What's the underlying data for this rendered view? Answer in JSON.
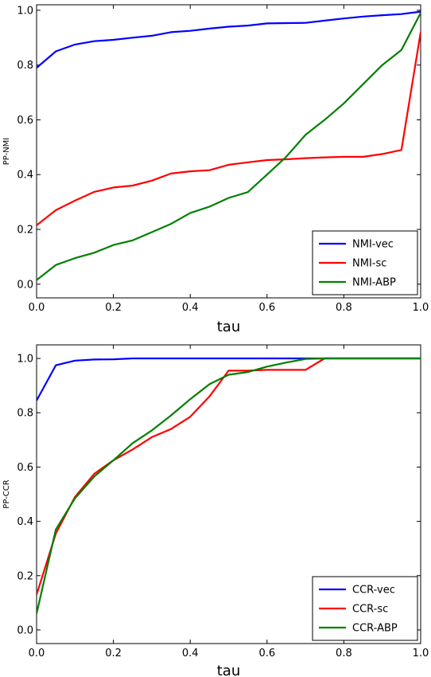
{
  "chart_data": [
    {
      "type": "line",
      "xlabel": "tau",
      "ylabel": "PP-NMI",
      "xlim": [
        0,
        1
      ],
      "ylim": [
        -0.05,
        1.02
      ],
      "xticks": [
        "0.0",
        "0.2",
        "0.4",
        "0.6",
        "0.8",
        "1.0"
      ],
      "yticks": [
        "0.0",
        "0.2",
        "0.4",
        "0.6",
        "0.8",
        "1.0"
      ],
      "grid": false,
      "legend_position": "lower-right",
      "series": [
        {
          "name": "NMI-vec",
          "color": "#0000ff",
          "x": [
            0,
            0.05,
            0.1,
            0.15,
            0.2,
            0.25,
            0.3,
            0.35,
            0.4,
            0.45,
            0.5,
            0.55,
            0.6,
            0.65,
            0.7,
            0.75,
            0.8,
            0.85,
            0.9,
            0.95,
            1.0
          ],
          "y": [
            0.79,
            0.85,
            0.875,
            0.887,
            0.892,
            0.9,
            0.907,
            0.92,
            0.925,
            0.933,
            0.94,
            0.944,
            0.952,
            0.953,
            0.954,
            0.962,
            0.97,
            0.977,
            0.982,
            0.986,
            0.995
          ]
        },
        {
          "name": "NMI-sc",
          "color": "#ff0000",
          "x": [
            0,
            0.05,
            0.1,
            0.15,
            0.2,
            0.25,
            0.3,
            0.35,
            0.4,
            0.45,
            0.5,
            0.55,
            0.6,
            0.65,
            0.7,
            0.75,
            0.8,
            0.85,
            0.9,
            0.95,
            1.0
          ],
          "y": [
            0.215,
            0.27,
            0.305,
            0.337,
            0.353,
            0.36,
            0.378,
            0.404,
            0.412,
            0.416,
            0.436,
            0.445,
            0.453,
            0.456,
            0.46,
            0.463,
            0.465,
            0.465,
            0.475,
            0.49,
            0.92
          ]
        },
        {
          "name": "NMI-ABP",
          "color": "#008000",
          "x": [
            0,
            0.05,
            0.1,
            0.15,
            0.2,
            0.25,
            0.3,
            0.35,
            0.4,
            0.45,
            0.5,
            0.55,
            0.6,
            0.65,
            0.7,
            0.75,
            0.8,
            0.85,
            0.9,
            0.95,
            1.0
          ],
          "y": [
            0.015,
            0.07,
            0.095,
            0.115,
            0.143,
            0.16,
            0.19,
            0.22,
            0.26,
            0.283,
            0.315,
            0.336,
            0.4,
            0.465,
            0.545,
            0.6,
            0.66,
            0.73,
            0.8,
            0.855,
            0.99
          ]
        }
      ]
    },
    {
      "type": "line",
      "xlabel": "tau",
      "ylabel": "PP-CCR",
      "xlim": [
        0,
        1
      ],
      "ylim": [
        -0.05,
        1.05
      ],
      "xticks": [
        "0.0",
        "0.2",
        "0.4",
        "0.6",
        "0.8",
        "1.0"
      ],
      "yticks": [
        "0.0",
        "0.2",
        "0.4",
        "0.6",
        "0.8",
        "1.0"
      ],
      "grid": false,
      "legend_position": "lower-right",
      "series": [
        {
          "name": "CCR-vec",
          "color": "#0000ff",
          "x": [
            0,
            0.05,
            0.1,
            0.15,
            0.2,
            0.25,
            0.3,
            0.4,
            0.5,
            0.6,
            0.7,
            0.8,
            0.9,
            1.0
          ],
          "y": [
            0.845,
            0.975,
            0.992,
            0.996,
            0.997,
            1.0,
            1.0,
            1.0,
            1.0,
            1.0,
            1.0,
            1.0,
            1.0,
            1.0
          ]
        },
        {
          "name": "CCR-sc",
          "color": "#ff0000",
          "x": [
            0,
            0.05,
            0.1,
            0.15,
            0.2,
            0.25,
            0.3,
            0.35,
            0.4,
            0.45,
            0.5,
            0.55,
            0.6,
            0.65,
            0.7,
            0.75,
            0.8,
            0.85,
            0.9,
            0.95,
            1.0
          ],
          "y": [
            0.13,
            0.355,
            0.49,
            0.575,
            0.625,
            0.665,
            0.71,
            0.74,
            0.785,
            0.86,
            0.955,
            0.955,
            0.958,
            0.958,
            0.958,
            1.0,
            1.0,
            1.0,
            1.0,
            1.0,
            1.0
          ]
        },
        {
          "name": "CCR-ABP",
          "color": "#008000",
          "x": [
            0,
            0.05,
            0.1,
            0.15,
            0.2,
            0.25,
            0.3,
            0.35,
            0.4,
            0.45,
            0.5,
            0.55,
            0.6,
            0.65,
            0.7,
            0.75,
            0.8,
            0.85,
            0.9,
            0.95,
            1.0
          ],
          "y": [
            0.06,
            0.37,
            0.485,
            0.565,
            0.625,
            0.688,
            0.735,
            0.79,
            0.85,
            0.905,
            0.94,
            0.95,
            0.97,
            0.985,
            0.998,
            1.0,
            1.0,
            1.0,
            1.0,
            1.0,
            1.0
          ]
        }
      ]
    }
  ]
}
